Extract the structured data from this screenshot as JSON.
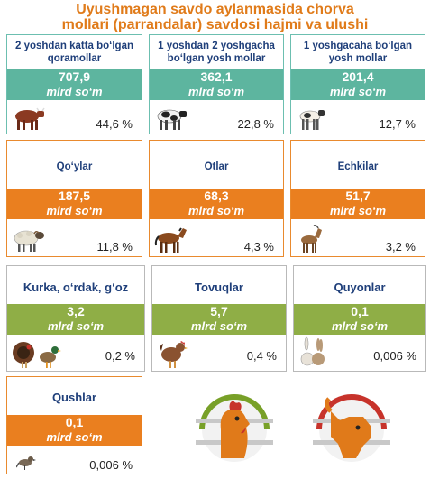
{
  "title_line1": "Uyushmagan savdo aylanmasida chorva",
  "title_line2": "mollari (parrandalar) savdosi hajmi va ulushi",
  "cards": [
    {
      "label": "2 yoshdan katta bo‘lgan qoramollar",
      "value": "707,9",
      "unit": "mlrd so‘m",
      "share": "44,6 %",
      "icon": "cow-icon",
      "color": "#5db59f"
    },
    {
      "label": "1 yoshdan 2 yoshgacha bo‘lgan yosh mollar",
      "value": "362,1",
      "unit": "mlrd so‘m",
      "share": "22,8 %",
      "icon": "dairy-cow-icon",
      "color": "#5db59f"
    },
    {
      "label": "1 yoshgacaha bo‘lgan yosh mollar",
      "value": "201,4",
      "unit": "mlrd so‘m",
      "share": "12,7 %",
      "icon": "calf-icon",
      "color": "#5db59f"
    },
    {
      "label": "Qo‘ylar",
      "value": "187,5",
      "unit": "mlrd so‘m",
      "share": "11,8 %",
      "icon": "sheep-icon",
      "color": "#ea7f1f"
    },
    {
      "label": "Otlar",
      "value": "68,3",
      "unit": "mlrd so‘m",
      "share": "4,3 %",
      "icon": "horse-icon",
      "color": "#ea7f1f"
    },
    {
      "label": "Echkilar",
      "value": "51,7",
      "unit": "mlrd so‘m",
      "share": "3,2 %",
      "icon": "goat-icon",
      "color": "#ea7f1f"
    },
    {
      "label": "Kurka, o‘rdak, g‘oz",
      "value": "3,2",
      "unit": "mlrd so‘m",
      "share": "0,2 %",
      "icon": "turkey-duck-icon",
      "color": "#8fae46"
    },
    {
      "label": "Tovuqlar",
      "value": "5,7",
      "unit": "mlrd so‘m",
      "share": "0,4 %",
      "icon": "hen-icon",
      "color": "#8fae46"
    },
    {
      "label": "Quyonlar",
      "value": "0,1",
      "unit": "mlrd so‘m",
      "share": "0,006 %",
      "icon": "rabbit-icon",
      "color": "#8fae46"
    },
    {
      "label": "Qushlar",
      "value": "0,1",
      "unit": "mlrd so‘m",
      "share": "0,006 %",
      "icon": "bird-icon",
      "color": "#ea7f1f"
    }
  ],
  "logos": [
    "rooster-logo-icon",
    "bull-logo-icon"
  ]
}
